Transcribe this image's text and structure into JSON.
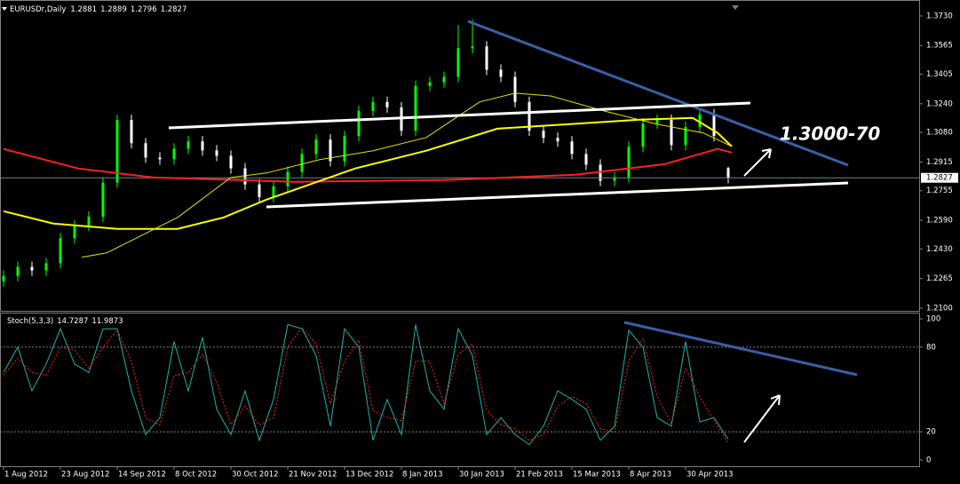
{
  "chart_data": [
    {
      "type": "candlestick",
      "title": "EURUSDr,Daily",
      "annotation": "1.3000-70",
      "x": [
        0,
        4,
        8,
        12,
        16,
        20,
        24,
        28,
        32,
        36,
        40,
        44,
        48,
        52,
        56,
        60,
        64,
        68,
        72,
        76,
        80,
        84,
        88,
        92,
        96,
        100,
        104,
        108,
        112,
        116,
        120,
        124,
        128,
        132,
        136,
        140,
        144,
        148,
        152,
        156,
        160,
        164,
        168,
        172,
        176,
        180,
        184,
        188,
        192,
        196,
        200,
        204
      ],
      "open": [
        1.225,
        1.228,
        1.233,
        1.231,
        1.235,
        1.249,
        1.256,
        1.261,
        1.28,
        1.315,
        1.302,
        1.294,
        1.293,
        1.299,
        1.303,
        1.298,
        1.295,
        1.288,
        1.279,
        1.272,
        1.278,
        1.286,
        1.296,
        1.304,
        1.292,
        1.306,
        1.32,
        1.325,
        1.322,
        1.309,
        1.334,
        1.336,
        1.339,
        1.355,
        1.356,
        1.343,
        1.339,
        1.325,
        1.309,
        1.305,
        1.303,
        1.296,
        1.29,
        1.281,
        1.283,
        1.3,
        1.313,
        1.315,
        1.301,
        1.311,
        1.318,
        1.2881
      ],
      "high": [
        1.231,
        1.236,
        1.236,
        1.238,
        1.252,
        1.259,
        1.264,
        1.283,
        1.318,
        1.318,
        1.305,
        1.297,
        1.302,
        1.306,
        1.306,
        1.301,
        1.298,
        1.291,
        1.282,
        1.281,
        1.289,
        1.299,
        1.307,
        1.307,
        1.309,
        1.323,
        1.328,
        1.328,
        1.325,
        1.337,
        1.339,
        1.342,
        1.368,
        1.371,
        1.359,
        1.346,
        1.342,
        1.328,
        1.312,
        1.308,
        1.306,
        1.299,
        1.293,
        1.286,
        1.303,
        1.316,
        1.318,
        1.318,
        1.314,
        1.321,
        1.321,
        1.2889
      ],
      "low": [
        1.222,
        1.225,
        1.228,
        1.228,
        1.232,
        1.246,
        1.253,
        1.258,
        1.277,
        1.299,
        1.291,
        1.29,
        1.29,
        1.296,
        1.295,
        1.292,
        1.285,
        1.276,
        1.269,
        1.269,
        1.275,
        1.283,
        1.293,
        1.289,
        1.289,
        1.303,
        1.317,
        1.319,
        1.306,
        1.306,
        1.331,
        1.333,
        1.336,
        1.352,
        1.34,
        1.336,
        1.322,
        1.306,
        1.302,
        1.3,
        1.293,
        1.287,
        1.278,
        1.278,
        1.28,
        1.297,
        1.31,
        1.298,
        1.298,
        1.308,
        1.303,
        1.2796
      ],
      "close": [
        1.228,
        1.233,
        1.231,
        1.235,
        1.249,
        1.256,
        1.261,
        1.28,
        1.315,
        1.302,
        1.294,
        1.293,
        1.299,
        1.303,
        1.298,
        1.295,
        1.288,
        1.279,
        1.272,
        1.278,
        1.286,
        1.296,
        1.304,
        1.292,
        1.306,
        1.32,
        1.325,
        1.322,
        1.309,
        1.334,
        1.336,
        1.339,
        1.355,
        1.356,
        1.343,
        1.339,
        1.325,
        1.309,
        1.305,
        1.303,
        1.296,
        1.29,
        1.281,
        1.283,
        1.3,
        1.313,
        1.315,
        1.301,
        1.311,
        1.318,
        1.306,
        1.2827
      ],
      "up_color": "#00ff00",
      "down_color": "#ffffff",
      "series": [
        {
          "color": "#ff2020",
          "width": 2,
          "x": [
            0,
            21,
            42,
            82,
            124,
            161,
            186,
            201,
            205
          ],
          "values": [
            1.2988,
            1.2879,
            1.2829,
            1.2805,
            1.2814,
            1.2844,
            1.2903,
            1.2988,
            1.2968
          ]
        },
        {
          "color": "#ffff00",
          "width": 2,
          "x": [
            0,
            14,
            32,
            49,
            62,
            74,
            99,
            119,
            139,
            159,
            179,
            194,
            201,
            205
          ],
          "values": [
            1.2641,
            1.2572,
            1.2542,
            1.2542,
            1.2606,
            1.2705,
            1.2879,
            1.2978,
            1.3101,
            1.3126,
            1.3151,
            1.3161,
            1.3077,
            1.3002
          ]
        },
        {
          "color": "#e6e600",
          "width": 1,
          "x": [
            22,
            29,
            39,
            49,
            64,
            74,
            89,
            104,
            119,
            134,
            144,
            154,
            169,
            184,
            197,
            205
          ],
          "values": [
            1.2384,
            1.2408,
            1.2507,
            1.2606,
            1.2829,
            1.2854,
            1.2928,
            1.2978,
            1.3052,
            1.325,
            1.3299,
            1.3284,
            1.32,
            1.3126,
            1.3077,
            1.3002
          ]
        }
      ],
      "xlim": [
        -1,
        257.75
      ],
      "ylim": [
        1.2085,
        1.3799
      ],
      "yticks": [
        {
          "value": 1.373,
          "label": "1.3730"
        },
        {
          "value": 1.3565,
          "label": "1.3565"
        },
        {
          "value": 1.3405,
          "label": "1.3405"
        },
        {
          "value": 1.324,
          "label": "1.3240"
        },
        {
          "value": 1.308,
          "label": "1.3080"
        },
        {
          "value": 1.2915,
          "label": "1.2915"
        },
        {
          "value": 1.2755,
          "label": "1.2755"
        },
        {
          "value": 1.259,
          "label": "1.2590"
        },
        {
          "value": 1.243,
          "label": "1.2430"
        },
        {
          "value": 1.2265,
          "label": "1.2265"
        },
        {
          "value": 1.21,
          "label": "1.2100"
        }
      ]
    },
    {
      "type": "line",
      "title": "Stoch(5,3,3)",
      "x": [
        0,
        4,
        8,
        12,
        16,
        20,
        24,
        28,
        32,
        36,
        40,
        44,
        48,
        52,
        56,
        60,
        64,
        68,
        72,
        76,
        80,
        84,
        88,
        92,
        96,
        100,
        104,
        108,
        112,
        116,
        120,
        124,
        128,
        132,
        136,
        140,
        144,
        148,
        152,
        156,
        160,
        164,
        168,
        172,
        176,
        180,
        184,
        188,
        192,
        196,
        200,
        204
      ],
      "series": [
        {
          "color": "#20b2aa",
          "style": "solid",
          "values": [
            62,
            80,
            49,
            68,
            93,
            68,
            62,
            93,
            93,
            49,
            18,
            30,
            84,
            49,
            87,
            36,
            18,
            49,
            14,
            43,
            96,
            93,
            74,
            24,
            93,
            80,
            14,
            43,
            18,
            96,
            49,
            36,
            93,
            74,
            18,
            30,
            18,
            11,
            24,
            49,
            43,
            36,
            14,
            24,
            92,
            80,
            30,
            24,
            84,
            27,
            30,
            14.7287
          ]
        },
        {
          "color": "#ff2020",
          "style": "dotted",
          "values": [
            60,
            72,
            62,
            60,
            80,
            78,
            65,
            80,
            92,
            70,
            30,
            25,
            60,
            62,
            75,
            55,
            25,
            38,
            25,
            30,
            80,
            94,
            82,
            40,
            70,
            85,
            35,
            30,
            28,
            70,
            70,
            40,
            75,
            82,
            35,
            25,
            22,
            14,
            18,
            38,
            45,
            40,
            22,
            20,
            70,
            86,
            45,
            26,
            65,
            45,
            28,
            11.9873
          ]
        }
      ],
      "xlim": [
        -1,
        257.75
      ],
      "ylim": [
        -4.4,
        103.8
      ],
      "yticks": [
        0,
        20,
        80,
        100
      ],
      "levels": [
        20,
        80
      ],
      "xticks": [
        {
          "value": 0,
          "label": "1 Aug 2012"
        },
        {
          "value": 16,
          "label": "23 Aug 2012"
        },
        {
          "value": 32,
          "label": "14 Sep 2012"
        },
        {
          "value": 48,
          "label": "8 Oct 2012"
        },
        {
          "value": 64,
          "label": "30 Oct 2012"
        },
        {
          "value": 80,
          "label": "21 Nov 2012"
        },
        {
          "value": 96,
          "label": "13 Dec 2012"
        },
        {
          "value": 112,
          "label": "8 Jan 2013"
        },
        {
          "value": 128,
          "label": "30 Jan 2013"
        },
        {
          "value": 144,
          "label": "21 Feb 2013"
        },
        {
          "value": 160,
          "label": "15 Mar 2013"
        },
        {
          "value": 176,
          "label": "8 Apr 2013"
        },
        {
          "value": 192,
          "label": "30 Apr 2013"
        }
      ]
    }
  ]
}
